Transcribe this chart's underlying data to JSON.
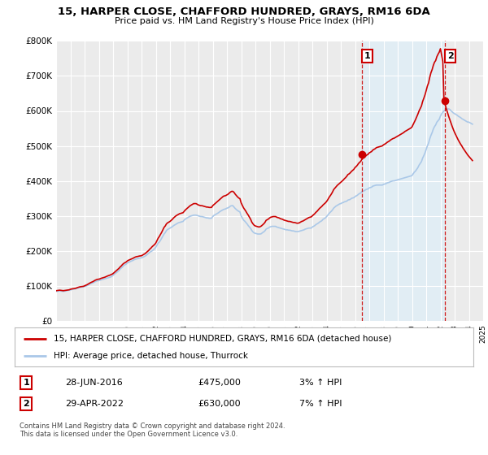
{
  "title": "15, HARPER CLOSE, CHAFFORD HUNDRED, GRAYS, RM16 6DA",
  "subtitle": "Price paid vs. HM Land Registry's House Price Index (HPI)",
  "ylim": [
    0,
    800000
  ],
  "yticks": [
    0,
    100000,
    200000,
    300000,
    400000,
    500000,
    600000,
    700000,
    800000
  ],
  "ytick_labels": [
    "£0",
    "£100K",
    "£200K",
    "£300K",
    "£400K",
    "£500K",
    "£600K",
    "£700K",
    "£800K"
  ],
  "background_color": "#ffffff",
  "plot_bg_color": "#ebebeb",
  "grid_color": "#ffffff",
  "hpi_color": "#aac8e8",
  "hpi_fill_color": "#ddeef8",
  "price_color": "#cc0000",
  "sale1_date": 2016.49,
  "sale1_price": 475000,
  "sale2_date": 2022.33,
  "sale2_price": 630000,
  "legend_label1": "15, HARPER CLOSE, CHAFFORD HUNDRED, GRAYS, RM16 6DA (detached house)",
  "legend_label2": "HPI: Average price, detached house, Thurrock",
  "annotation1_label": "1",
  "annotation1_date": "28-JUN-2016",
  "annotation1_price": "£475,000",
  "annotation1_hpi": "3% ↑ HPI",
  "annotation2_label": "2",
  "annotation2_date": "29-APR-2022",
  "annotation2_price": "£630,000",
  "annotation2_hpi": "7% ↑ HPI",
  "footer": "Contains HM Land Registry data © Crown copyright and database right 2024.\nThis data is licensed under the Open Government Licence v3.0.",
  "hpi_data_years": [
    1995.0,
    1995.083,
    1995.167,
    1995.25,
    1995.333,
    1995.417,
    1995.5,
    1995.583,
    1995.667,
    1995.75,
    1995.833,
    1995.917,
    1996.0,
    1996.083,
    1996.167,
    1996.25,
    1996.333,
    1996.417,
    1996.5,
    1996.583,
    1996.667,
    1996.75,
    1996.833,
    1996.917,
    1997.0,
    1997.083,
    1997.167,
    1997.25,
    1997.333,
    1997.417,
    1997.5,
    1997.583,
    1997.667,
    1997.75,
    1997.833,
    1997.917,
    1998.0,
    1998.083,
    1998.167,
    1998.25,
    1998.333,
    1998.417,
    1998.5,
    1998.583,
    1998.667,
    1998.75,
    1998.833,
    1998.917,
    1999.0,
    1999.083,
    1999.167,
    1999.25,
    1999.333,
    1999.417,
    1999.5,
    1999.583,
    1999.667,
    1999.75,
    1999.833,
    1999.917,
    2000.0,
    2000.083,
    2000.167,
    2000.25,
    2000.333,
    2000.417,
    2000.5,
    2000.583,
    2000.667,
    2000.75,
    2000.833,
    2000.917,
    2001.0,
    2001.083,
    2001.167,
    2001.25,
    2001.333,
    2001.417,
    2001.5,
    2001.583,
    2001.667,
    2001.75,
    2001.833,
    2001.917,
    2002.0,
    2002.083,
    2002.167,
    2002.25,
    2002.333,
    2002.417,
    2002.5,
    2002.583,
    2002.667,
    2002.75,
    2002.833,
    2002.917,
    2003.0,
    2003.083,
    2003.167,
    2003.25,
    2003.333,
    2003.417,
    2003.5,
    2003.583,
    2003.667,
    2003.75,
    2003.833,
    2003.917,
    2004.0,
    2004.083,
    2004.167,
    2004.25,
    2004.333,
    2004.417,
    2004.5,
    2004.583,
    2004.667,
    2004.75,
    2004.833,
    2004.917,
    2005.0,
    2005.083,
    2005.167,
    2005.25,
    2005.333,
    2005.417,
    2005.5,
    2005.583,
    2005.667,
    2005.75,
    2005.833,
    2005.917,
    2006.0,
    2006.083,
    2006.167,
    2006.25,
    2006.333,
    2006.417,
    2006.5,
    2006.583,
    2006.667,
    2006.75,
    2006.833,
    2006.917,
    2007.0,
    2007.083,
    2007.167,
    2007.25,
    2007.333,
    2007.417,
    2007.5,
    2007.583,
    2007.667,
    2007.75,
    2007.833,
    2007.917,
    2008.0,
    2008.083,
    2008.167,
    2008.25,
    2008.333,
    2008.417,
    2008.5,
    2008.583,
    2008.667,
    2008.75,
    2008.833,
    2008.917,
    2009.0,
    2009.083,
    2009.167,
    2009.25,
    2009.333,
    2009.417,
    2009.5,
    2009.583,
    2009.667,
    2009.75,
    2009.833,
    2009.917,
    2010.0,
    2010.083,
    2010.167,
    2010.25,
    2010.333,
    2010.417,
    2010.5,
    2010.583,
    2010.667,
    2010.75,
    2010.833,
    2010.917,
    2011.0,
    2011.083,
    2011.167,
    2011.25,
    2011.333,
    2011.417,
    2011.5,
    2011.583,
    2011.667,
    2011.75,
    2011.833,
    2011.917,
    2012.0,
    2012.083,
    2012.167,
    2012.25,
    2012.333,
    2012.417,
    2012.5,
    2012.583,
    2012.667,
    2012.75,
    2012.833,
    2012.917,
    2013.0,
    2013.083,
    2013.167,
    2013.25,
    2013.333,
    2013.417,
    2013.5,
    2013.583,
    2013.667,
    2013.75,
    2013.833,
    2013.917,
    2014.0,
    2014.083,
    2014.167,
    2014.25,
    2014.333,
    2014.417,
    2014.5,
    2014.583,
    2014.667,
    2014.75,
    2014.833,
    2014.917,
    2015.0,
    2015.083,
    2015.167,
    2015.25,
    2015.333,
    2015.417,
    2015.5,
    2015.583,
    2015.667,
    2015.75,
    2015.833,
    2015.917,
    2016.0,
    2016.083,
    2016.167,
    2016.25,
    2016.333,
    2016.417,
    2016.5,
    2016.583,
    2016.667,
    2016.75,
    2016.833,
    2016.917,
    2017.0,
    2017.083,
    2017.167,
    2017.25,
    2017.333,
    2017.417,
    2017.5,
    2017.583,
    2017.667,
    2017.75,
    2017.833,
    2017.917,
    2018.0,
    2018.083,
    2018.167,
    2018.25,
    2018.333,
    2018.417,
    2018.5,
    2018.583,
    2018.667,
    2018.75,
    2018.833,
    2018.917,
    2019.0,
    2019.083,
    2019.167,
    2019.25,
    2019.333,
    2019.417,
    2019.5,
    2019.583,
    2019.667,
    2019.75,
    2019.833,
    2019.917,
    2020.0,
    2020.083,
    2020.167,
    2020.25,
    2020.333,
    2020.417,
    2020.5,
    2020.583,
    2020.667,
    2020.75,
    2020.833,
    2020.917,
    2021.0,
    2021.083,
    2021.167,
    2021.25,
    2021.333,
    2021.417,
    2021.5,
    2021.583,
    2021.667,
    2021.75,
    2021.833,
    2021.917,
    2022.0,
    2022.083,
    2022.167,
    2022.25,
    2022.333,
    2022.417,
    2022.5,
    2022.583,
    2022.667,
    2022.75,
    2022.833,
    2022.917,
    2023.0,
    2023.083,
    2023.167,
    2023.25,
    2023.333,
    2023.417,
    2023.5,
    2023.583,
    2023.667,
    2023.75,
    2023.833,
    2023.917,
    2024.0,
    2024.083,
    2024.167,
    2024.25
  ],
  "hpi_data_values": [
    84000,
    84500,
    85000,
    85500,
    85000,
    84500,
    84000,
    84500,
    85000,
    86000,
    87000,
    87500,
    88000,
    89000,
    90000,
    90500,
    91000,
    92000,
    93000,
    94000,
    95000,
    96000,
    96500,
    97000,
    98000,
    99000,
    100500,
    102000,
    104000,
    106000,
    107000,
    108500,
    110000,
    112000,
    113500,
    114500,
    115000,
    116000,
    117000,
    118000,
    119000,
    120000,
    121000,
    122000,
    123000,
    124000,
    125000,
    127000,
    130000,
    133000,
    136000,
    138000,
    141000,
    144000,
    148000,
    151000,
    154000,
    158000,
    160000,
    162000,
    165000,
    167000,
    168500,
    170000,
    171500,
    173000,
    175000,
    176000,
    177000,
    178000,
    179000,
    179500,
    180000,
    181500,
    183000,
    185000,
    187000,
    190000,
    193000,
    196000,
    198000,
    200000,
    203000,
    206000,
    210000,
    216000,
    222000,
    225000,
    230000,
    236000,
    242000,
    248000,
    252000,
    258000,
    261000,
    263000,
    265000,
    267000,
    269000,
    272000,
    274000,
    276000,
    278000,
    280000,
    281000,
    282000,
    283000,
    284000,
    288000,
    291000,
    293000,
    295000,
    297000,
    299000,
    300000,
    301000,
    302000,
    302000,
    302000,
    301000,
    300000,
    299000,
    298000,
    298000,
    297000,
    296000,
    295000,
    294000,
    294000,
    293000,
    293000,
    293000,
    298000,
    301000,
    303000,
    305000,
    307000,
    309000,
    312000,
    314000,
    316000,
    318000,
    319000,
    320000,
    322000,
    323000,
    325000,
    328000,
    329000,
    329000,
    325000,
    321000,
    318000,
    315000,
    313000,
    311000,
    300000,
    294000,
    288000,
    285000,
    281000,
    277000,
    272000,
    268000,
    264000,
    258000,
    254000,
    251000,
    250000,
    249000,
    248000,
    248000,
    248000,
    249000,
    252000,
    254000,
    257000,
    262000,
    264000,
    265000,
    268000,
    269000,
    270000,
    270000,
    270000,
    270000,
    268000,
    267000,
    266000,
    265000,
    264000,
    263000,
    262000,
    261000,
    260000,
    260000,
    259000,
    259000,
    258000,
    257000,
    257000,
    256000,
    255000,
    255000,
    255000,
    256000,
    257000,
    258000,
    259000,
    260000,
    262000,
    263000,
    264000,
    265000,
    265000,
    265000,
    268000,
    270000,
    272000,
    275000,
    277000,
    279000,
    282000,
    284000,
    286000,
    290000,
    292000,
    294000,
    298000,
    302000,
    306000,
    310000,
    313000,
    317000,
    322000,
    325000,
    328000,
    330000,
    332000,
    334000,
    335000,
    337000,
    338000,
    340000,
    341000,
    342000,
    345000,
    346000,
    347000,
    350000,
    351000,
    352000,
    355000,
    357000,
    359000,
    362000,
    364000,
    366000,
    370000,
    371000,
    372000,
    375000,
    376000,
    377000,
    380000,
    381000,
    382000,
    385000,
    386000,
    387000,
    388000,
    388000,
    388000,
    388000,
    388000,
    388000,
    390000,
    391000,
    392000,
    394000,
    395000,
    396000,
    398000,
    399000,
    400000,
    400000,
    401000,
    402000,
    403000,
    404000,
    405000,
    406000,
    407000,
    408000,
    409000,
    410000,
    411000,
    412000,
    413000,
    414000,
    415000,
    420000,
    425000,
    428000,
    433000,
    438000,
    445000,
    450000,
    455000,
    465000,
    472000,
    480000,
    490000,
    500000,
    508000,
    520000,
    530000,
    538000,
    548000,
    555000,
    560000,
    568000,
    572000,
    576000,
    585000,
    592000,
    596000,
    600000,
    602000,
    604000,
    605000,
    606000,
    604000,
    600000,
    597000,
    594000,
    592000,
    590000,
    588000,
    585000,
    583000,
    581000,
    578000,
    576000,
    574000,
    572000,
    570000,
    568000,
    568000,
    566000,
    564000,
    562000
  ],
  "price_data_years": [
    1995.0,
    1995.083,
    1995.167,
    1995.25,
    1995.333,
    1995.417,
    1995.5,
    1995.583,
    1995.667,
    1995.75,
    1995.833,
    1995.917,
    1996.0,
    1996.083,
    1996.167,
    1996.25,
    1996.333,
    1996.417,
    1996.5,
    1996.583,
    1996.667,
    1996.75,
    1996.833,
    1996.917,
    1997.0,
    1997.083,
    1997.167,
    1997.25,
    1997.333,
    1997.417,
    1997.5,
    1997.583,
    1997.667,
    1997.75,
    1997.833,
    1997.917,
    1998.0,
    1998.083,
    1998.167,
    1998.25,
    1998.333,
    1998.417,
    1998.5,
    1998.583,
    1998.667,
    1998.75,
    1998.833,
    1998.917,
    1999.0,
    1999.083,
    1999.167,
    1999.25,
    1999.333,
    1999.417,
    1999.5,
    1999.583,
    1999.667,
    1999.75,
    1999.833,
    1999.917,
    2000.0,
    2000.083,
    2000.167,
    2000.25,
    2000.333,
    2000.417,
    2000.5,
    2000.583,
    2000.667,
    2000.75,
    2000.833,
    2000.917,
    2001.0,
    2001.083,
    2001.167,
    2001.25,
    2001.333,
    2001.417,
    2001.5,
    2001.583,
    2001.667,
    2001.75,
    2001.833,
    2001.917,
    2002.0,
    2002.083,
    2002.167,
    2002.25,
    2002.333,
    2002.417,
    2002.5,
    2002.583,
    2002.667,
    2002.75,
    2002.833,
    2002.917,
    2003.0,
    2003.083,
    2003.167,
    2003.25,
    2003.333,
    2003.417,
    2003.5,
    2003.583,
    2003.667,
    2003.75,
    2003.833,
    2003.917,
    2004.0,
    2004.083,
    2004.167,
    2004.25,
    2004.333,
    2004.417,
    2004.5,
    2004.583,
    2004.667,
    2004.75,
    2004.833,
    2004.917,
    2005.0,
    2005.083,
    2005.167,
    2005.25,
    2005.333,
    2005.417,
    2005.5,
    2005.583,
    2005.667,
    2005.75,
    2005.833,
    2005.917,
    2006.0,
    2006.083,
    2006.167,
    2006.25,
    2006.333,
    2006.417,
    2006.5,
    2006.583,
    2006.667,
    2006.75,
    2006.833,
    2006.917,
    2007.0,
    2007.083,
    2007.167,
    2007.25,
    2007.333,
    2007.417,
    2007.5,
    2007.583,
    2007.667,
    2007.75,
    2007.833,
    2007.917,
    2008.0,
    2008.083,
    2008.167,
    2008.25,
    2008.333,
    2008.417,
    2008.5,
    2008.583,
    2008.667,
    2008.75,
    2008.833,
    2008.917,
    2009.0,
    2009.083,
    2009.167,
    2009.25,
    2009.333,
    2009.417,
    2009.5,
    2009.583,
    2009.667,
    2009.75,
    2009.833,
    2009.917,
    2010.0,
    2010.083,
    2010.167,
    2010.25,
    2010.333,
    2010.417,
    2010.5,
    2010.583,
    2010.667,
    2010.75,
    2010.833,
    2010.917,
    2011.0,
    2011.083,
    2011.167,
    2011.25,
    2011.333,
    2011.417,
    2011.5,
    2011.583,
    2011.667,
    2011.75,
    2011.833,
    2011.917,
    2012.0,
    2012.083,
    2012.167,
    2012.25,
    2012.333,
    2012.417,
    2012.5,
    2012.583,
    2012.667,
    2012.75,
    2012.833,
    2012.917,
    2013.0,
    2013.083,
    2013.167,
    2013.25,
    2013.333,
    2013.417,
    2013.5,
    2013.583,
    2013.667,
    2013.75,
    2013.833,
    2013.917,
    2014.0,
    2014.083,
    2014.167,
    2014.25,
    2014.333,
    2014.417,
    2014.5,
    2014.583,
    2014.667,
    2014.75,
    2014.833,
    2014.917,
    2015.0,
    2015.083,
    2015.167,
    2015.25,
    2015.333,
    2015.417,
    2015.5,
    2015.583,
    2015.667,
    2015.75,
    2015.833,
    2015.917,
    2016.0,
    2016.083,
    2016.167,
    2016.25,
    2016.333,
    2016.417,
    2016.5,
    2016.583,
    2016.667,
    2016.75,
    2016.833,
    2016.917,
    2017.0,
    2017.083,
    2017.167,
    2017.25,
    2017.333,
    2017.417,
    2017.5,
    2017.583,
    2017.667,
    2017.75,
    2017.833,
    2017.917,
    2018.0,
    2018.083,
    2018.167,
    2018.25,
    2018.333,
    2018.417,
    2018.5,
    2018.583,
    2018.667,
    2018.75,
    2018.833,
    2018.917,
    2019.0,
    2019.083,
    2019.167,
    2019.25,
    2019.333,
    2019.417,
    2019.5,
    2019.583,
    2019.667,
    2019.75,
    2019.833,
    2019.917,
    2020.0,
    2020.083,
    2020.167,
    2020.25,
    2020.333,
    2020.417,
    2020.5,
    2020.583,
    2020.667,
    2020.75,
    2020.833,
    2020.917,
    2021.0,
    2021.083,
    2021.167,
    2021.25,
    2021.333,
    2021.417,
    2021.5,
    2021.583,
    2021.667,
    2021.75,
    2021.833,
    2021.917,
    2022.0,
    2022.083,
    2022.167,
    2022.25,
    2022.333,
    2022.417,
    2022.5,
    2022.583,
    2022.667,
    2022.75,
    2022.833,
    2022.917,
    2023.0,
    2023.083,
    2023.167,
    2023.25,
    2023.333,
    2023.417,
    2023.5,
    2023.583,
    2023.667,
    2023.75,
    2023.833,
    2023.917,
    2024.0,
    2024.083,
    2024.167,
    2024.25
  ],
  "price_data_values": [
    86000,
    86500,
    87000,
    87500,
    87000,
    86500,
    86000,
    86500,
    87000,
    87500,
    88000,
    88500,
    90000,
    91000,
    91500,
    92000,
    92500,
    93500,
    95000,
    96000,
    97000,
    97500,
    98000,
    98500,
    100000,
    101500,
    103000,
    105000,
    107000,
    109000,
    110500,
    112000,
    114000,
    116000,
    117500,
    118500,
    119000,
    120000,
    121500,
    122500,
    123500,
    124500,
    126000,
    127500,
    129000,
    130000,
    131500,
    133000,
    135000,
    138000,
    141000,
    144000,
    147000,
    150000,
    154000,
    157000,
    161000,
    164000,
    166000,
    168000,
    171000,
    173000,
    174500,
    176000,
    177500,
    179000,
    181000,
    182500,
    183500,
    184000,
    185000,
    185500,
    186000,
    188000,
    190000,
    192000,
    195000,
    198000,
    201000,
    205000,
    208000,
    212000,
    215000,
    218000,
    222000,
    229000,
    236000,
    241000,
    247000,
    253000,
    260000,
    267000,
    271000,
    277000,
    280000,
    282000,
    284000,
    287000,
    290000,
    294000,
    297000,
    300000,
    302000,
    304000,
    306000,
    307000,
    308000,
    309000,
    313000,
    317000,
    320000,
    323000,
    326000,
    329000,
    331000,
    333000,
    335000,
    335000,
    335000,
    333000,
    331000,
    330000,
    329000,
    329000,
    328000,
    327000,
    326000,
    325000,
    325000,
    324000,
    324000,
    324000,
    329000,
    332000,
    335000,
    338000,
    341000,
    344000,
    347000,
    350000,
    353000,
    356000,
    357000,
    358000,
    360000,
    362000,
    365000,
    368000,
    370000,
    370000,
    367000,
    362000,
    358000,
    354000,
    351000,
    349000,
    337000,
    330000,
    323000,
    318000,
    313000,
    307000,
    302000,
    296000,
    290000,
    282000,
    277000,
    273000,
    271000,
    270000,
    269000,
    268000,
    269000,
    271000,
    274000,
    277000,
    281000,
    287000,
    289000,
    291000,
    294000,
    296000,
    297000,
    298000,
    298000,
    298000,
    296000,
    295000,
    294000,
    292000,
    291000,
    290000,
    288000,
    287000,
    286000,
    285000,
    284000,
    284000,
    283000,
    282000,
    281000,
    281000,
    280000,
    279000,
    279000,
    280000,
    282000,
    284000,
    285000,
    287000,
    289000,
    291000,
    293000,
    295000,
    296000,
    297000,
    300000,
    303000,
    306000,
    310000,
    313000,
    317000,
    321000,
    324000,
    327000,
    331000,
    334000,
    337000,
    341000,
    346000,
    352000,
    357000,
    362000,
    368000,
    375000,
    379000,
    383000,
    387000,
    390000,
    393000,
    396000,
    399000,
    402000,
    406000,
    409000,
    413000,
    418000,
    420000,
    423000,
    427000,
    430000,
    433000,
    438000,
    441000,
    445000,
    450000,
    453000,
    457000,
    463000,
    465000,
    467000,
    471000,
    474000,
    476000,
    480000,
    482000,
    484000,
    488000,
    490000,
    492000,
    495000,
    496000,
    497000,
    498000,
    499000,
    500000,
    503000,
    505000,
    507000,
    510000,
    512000,
    514000,
    517000,
    519000,
    521000,
    522000,
    524000,
    526000,
    528000,
    530000,
    532000,
    534000,
    536000,
    538000,
    541000,
    543000,
    545000,
    547000,
    549000,
    551000,
    554000,
    561000,
    568000,
    575000,
    583000,
    591000,
    600000,
    607000,
    614000,
    627000,
    636000,
    646000,
    658000,
    671000,
    680000,
    696000,
    709000,
    718000,
    730000,
    739000,
    744000,
    755000,
    762000,
    768000,
    778000,
    760000,
    741000,
    630000,
    618000,
    606000,
    595000,
    584000,
    574000,
    564000,
    555000,
    546000,
    538000,
    531000,
    524000,
    517000,
    511000,
    505000,
    500000,
    494000,
    489000,
    484000,
    479000,
    474000,
    470000,
    466000,
    462000,
    458000
  ]
}
